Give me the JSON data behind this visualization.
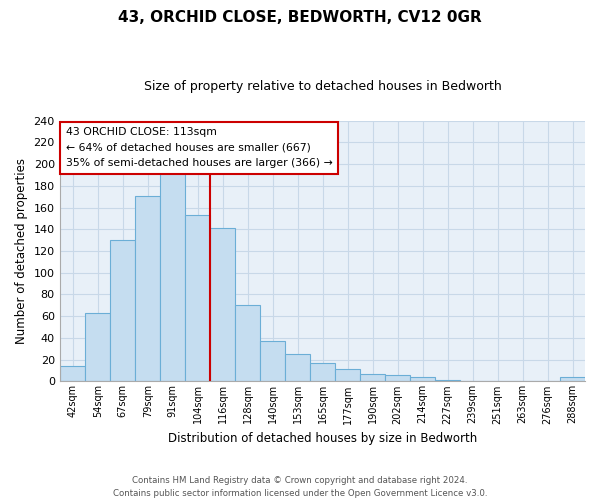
{
  "title": "43, ORCHID CLOSE, BEDWORTH, CV12 0GR",
  "subtitle": "Size of property relative to detached houses in Bedworth",
  "xlabel": "Distribution of detached houses by size in Bedworth",
  "ylabel": "Number of detached properties",
  "bar_labels": [
    "42sqm",
    "54sqm",
    "67sqm",
    "79sqm",
    "91sqm",
    "104sqm",
    "116sqm",
    "128sqm",
    "140sqm",
    "153sqm",
    "165sqm",
    "177sqm",
    "190sqm",
    "202sqm",
    "214sqm",
    "227sqm",
    "239sqm",
    "251sqm",
    "263sqm",
    "276sqm",
    "288sqm"
  ],
  "bar_heights": [
    14,
    63,
    130,
    171,
    200,
    153,
    141,
    70,
    37,
    25,
    17,
    11,
    7,
    6,
    4,
    1,
    0,
    0,
    0,
    0,
    4
  ],
  "bar_color": "#c5ddf0",
  "bar_edge_color": "#6baed6",
  "vline_x": 6.0,
  "vline_color": "#cc0000",
  "ylim": [
    0,
    240
  ],
  "yticks": [
    0,
    20,
    40,
    60,
    80,
    100,
    120,
    140,
    160,
    180,
    200,
    220,
    240
  ],
  "annotation_title": "43 ORCHID CLOSE: 113sqm",
  "annotation_line1": "← 64% of detached houses are smaller (667)",
  "annotation_line2": "35% of semi-detached houses are larger (366) →",
  "annotation_box_color": "#ffffff",
  "annotation_box_edge": "#cc0000",
  "footer_line1": "Contains HM Land Registry data © Crown copyright and database right 2024.",
  "footer_line2": "Contains public sector information licensed under the Open Government Licence v3.0.",
  "background_color": "#ffffff",
  "grid_color": "#c8d8e8"
}
